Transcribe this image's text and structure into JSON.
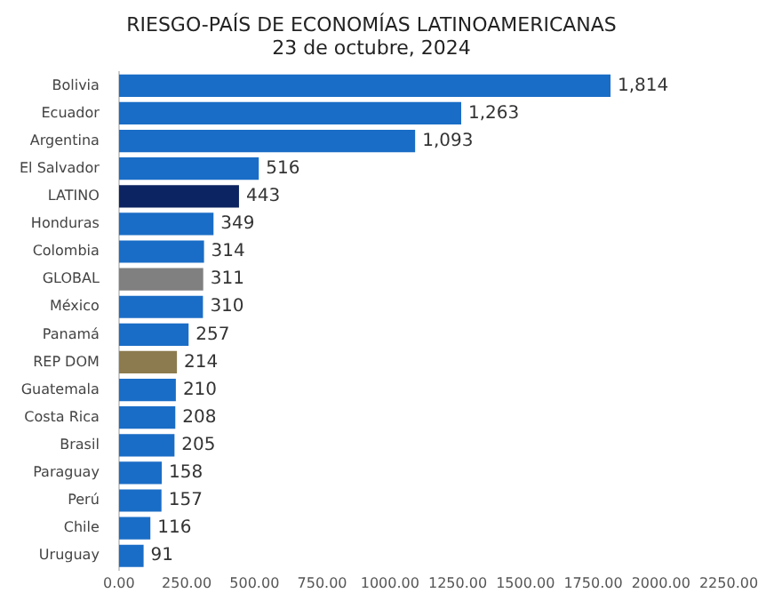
{
  "chart_data": {
    "type": "bar",
    "orientation": "horizontal",
    "title": "RIESGO-PAÍS DE ECONOMÍAS LATINOAMERICANAS",
    "subtitle": "23 de octubre, 2024",
    "categories": [
      "Bolivia",
      "Ecuador",
      "Argentina",
      "El Salvador",
      "LATINO",
      "Honduras",
      "Colombia",
      "GLOBAL",
      "México",
      "Panamá",
      "REP DOM",
      "Guatemala",
      "Costa Rica",
      "Brasil",
      "Paraguay",
      "Perú",
      "Chile",
      "Uruguay"
    ],
    "values": [
      1814,
      1263,
      1093,
      516,
      443,
      349,
      314,
      311,
      310,
      257,
      214,
      210,
      208,
      205,
      158,
      157,
      116,
      91
    ],
    "value_labels": [
      "1,814",
      "1,263",
      "1,093",
      "516",
      "443",
      "349",
      "314",
      "311",
      "310",
      "257",
      "214",
      "210",
      "208",
      "205",
      "158",
      "157",
      "116",
      "91"
    ],
    "colors": [
      "#1a6dc6",
      "#1a6dc6",
      "#1a6dc6",
      "#1a6dc6",
      "#0c2461",
      "#1a6dc6",
      "#1a6dc6",
      "#808080",
      "#1a6dc6",
      "#1a6dc6",
      "#8c7b4e",
      "#1a6dc6",
      "#1a6dc6",
      "#1a6dc6",
      "#1a6dc6",
      "#1a6dc6",
      "#1a6dc6",
      "#1a6dc6"
    ],
    "xlim": [
      0,
      2250
    ],
    "xticks": [
      {
        "value": 0,
        "label": "0.00"
      },
      {
        "value": 250,
        "label": "250.00"
      },
      {
        "value": 500,
        "label": "500.00"
      },
      {
        "value": 750,
        "label": "750.00"
      },
      {
        "value": 1000,
        "label": "1000.00"
      },
      {
        "value": 1250,
        "label": "1250.00"
      },
      {
        "value": 1500,
        "label": "1500.00"
      },
      {
        "value": 1750,
        "label": "1750.00"
      },
      {
        "value": 2000,
        "label": "2000.00"
      },
      {
        "value": 2250,
        "label": "2250.00"
      }
    ],
    "grid": false,
    "legend": false
  }
}
